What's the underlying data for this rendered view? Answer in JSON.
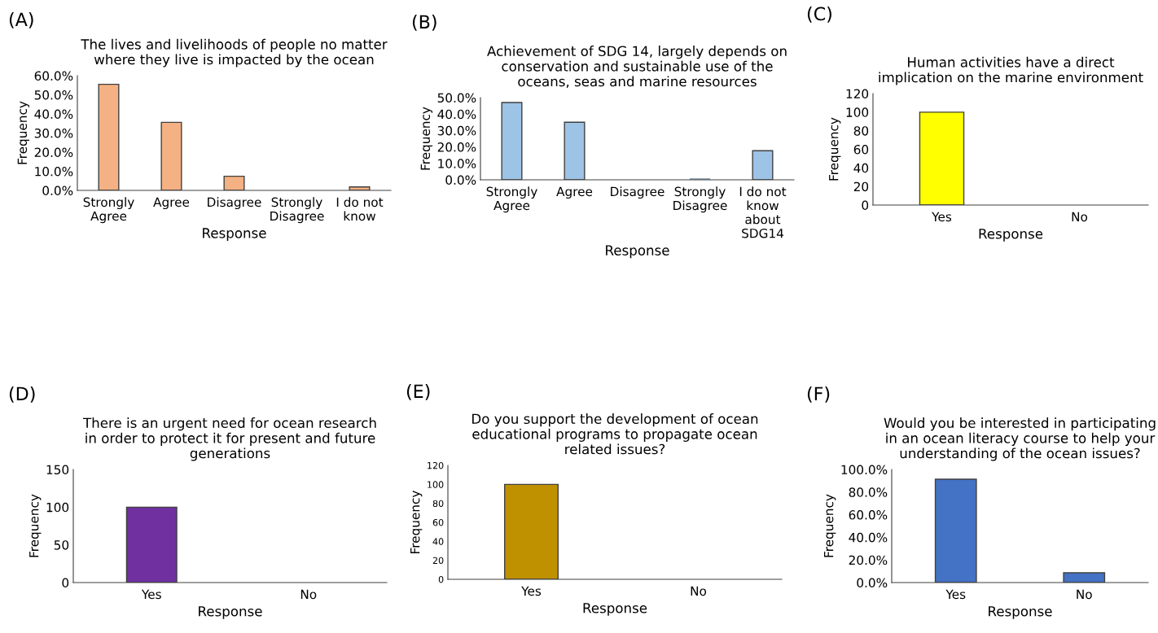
{
  "chart_data": [
    {
      "type": "bar",
      "annotations": [
        "(A)"
      ],
      "title": "The lives and livelihoods of people no matter\nwhere they live is impacted by the ocean",
      "xlabel": "Response",
      "ylabel": "Frequency",
      "categories": [
        "Strongly\nAgree",
        "Agree",
        "Disagree",
        "Strongly\nDisagree",
        "I do not\nknow"
      ],
      "values": [
        55.5,
        35.6,
        7.4,
        0,
        1.8
      ],
      "color": "#f4b183",
      "ylim": [
        0,
        60
      ],
      "yticks": [
        {
          "value": 0,
          "label": "0.0%"
        },
        {
          "value": 10,
          "label": "10.0%"
        },
        {
          "value": 20,
          "label": "20.0%"
        },
        {
          "value": 30,
          "label": "30.0%"
        },
        {
          "value": 40,
          "label": "40.0%"
        },
        {
          "value": 50,
          "label": "50.0%"
        },
        {
          "value": 60,
          "label": "60.0%"
        }
      ],
      "grid": false,
      "legend": false
    },
    {
      "type": "bar",
      "annotations": [
        "(B)"
      ],
      "title": "Achievement of SDG 14, largely depends on\nconservation and sustainable use of the\noceans, seas and marine resources",
      "xlabel": "Response",
      "ylabel": "Frequency",
      "categories": [
        "Strongly\nAgree",
        "Agree",
        "Disagree",
        "Strongly\nDisagree",
        "I do not\nknow\nabout\nSDG14"
      ],
      "values": [
        47,
        35,
        0,
        0.7,
        17.7
      ],
      "color": "#9dc3e6",
      "ylim": [
        0,
        50
      ],
      "yticks": [
        {
          "value": 0,
          "label": "0.0%"
        },
        {
          "value": 10,
          "label": "10.0%"
        },
        {
          "value": 20,
          "label": "20.0%"
        },
        {
          "value": 30,
          "label": "30.0%"
        },
        {
          "value": 40,
          "label": "40.0%"
        },
        {
          "value": 50,
          "label": "50.0%"
        }
      ],
      "grid": false,
      "legend": false
    },
    {
      "type": "bar",
      "annotations": [
        "(C)"
      ],
      "title": "Human activities have a direct\nimplication on the marine environment",
      "xlabel": "Response",
      "ylabel": "Frequency",
      "categories": [
        "Yes",
        "No"
      ],
      "values": [
        100,
        0
      ],
      "color": "#ffff00",
      "ylim": [
        0,
        120
      ],
      "yticks": [
        0,
        20,
        40,
        60,
        80,
        100,
        120
      ],
      "grid": false,
      "legend": false
    },
    {
      "type": "bar",
      "annotations": [
        "(D)"
      ],
      "title": "There is an urgent need for ocean research\nin order to protect it for present and future\ngenerations",
      "xlabel": "Response",
      "ylabel": "Frequency",
      "categories": [
        "Yes",
        "No"
      ],
      "values": [
        100,
        0
      ],
      "color": "#7030a0",
      "ylim": [
        0,
        150
      ],
      "yticks": [
        0,
        50,
        100,
        150
      ],
      "grid": false,
      "legend": false
    },
    {
      "type": "bar",
      "annotations": [
        "(E)"
      ],
      "title": "Do you support the development of ocean\neducational programs to propagate ocean\nrelated issues?",
      "xlabel": "Response",
      "ylabel": "Frequency",
      "categories": [
        "Yes",
        "No"
      ],
      "values": [
        100,
        0
      ],
      "color": "#bf9000",
      "ylim": [
        0,
        120
      ],
      "yticks": [
        0,
        20,
        40,
        60,
        80,
        100,
        120
      ],
      "grid": false,
      "legend": false
    },
    {
      "type": "bar",
      "annotations": [
        "(F)"
      ],
      "title": "Would you be interested in participating\nin an ocean literacy course to help your\nunderstanding of the ocean issues?",
      "xlabel": "Response",
      "ylabel": "Frequency",
      "categories": [
        "Yes",
        "No"
      ],
      "values": [
        91.4,
        8.6
      ],
      "color": "#4472c4",
      "ylim": [
        0,
        100
      ],
      "yticks": [
        {
          "value": 0,
          "label": "0.0%"
        },
        {
          "value": 20,
          "label": "20.0%"
        },
        {
          "value": 40,
          "label": "40.0%"
        },
        {
          "value": 60,
          "label": "60.0%"
        },
        {
          "value": 80,
          "label": "80.0%"
        },
        {
          "value": 100,
          "label": "100.0%"
        }
      ],
      "grid": false,
      "legend": false
    }
  ]
}
